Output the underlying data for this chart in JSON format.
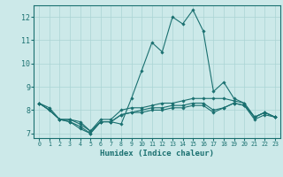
{
  "title": "",
  "xlabel": "Humidex (Indice chaleur)",
  "ylabel": "",
  "background_color": "#cce9e9",
  "grid_color": "#aad4d4",
  "line_color": "#1a7070",
  "xlim": [
    -0.5,
    23.5
  ],
  "ylim": [
    6.8,
    12.5
  ],
  "yticks": [
    7,
    8,
    9,
    10,
    11,
    12
  ],
  "xticks": [
    0,
    1,
    2,
    3,
    4,
    5,
    6,
    7,
    8,
    9,
    10,
    11,
    12,
    13,
    14,
    15,
    16,
    17,
    18,
    19,
    20,
    21,
    22,
    23
  ],
  "series": [
    [
      8.3,
      8.1,
      7.6,
      7.5,
      7.2,
      7.0,
      7.5,
      7.5,
      7.4,
      8.5,
      9.7,
      10.9,
      10.5,
      12.0,
      11.7,
      12.3,
      11.4,
      8.8,
      9.2,
      8.5,
      8.3,
      7.7,
      7.9,
      7.7
    ],
    [
      8.3,
      8.0,
      7.6,
      7.6,
      7.5,
      7.1,
      7.6,
      7.6,
      8.0,
      8.1,
      8.1,
      8.2,
      8.3,
      8.3,
      8.4,
      8.5,
      8.5,
      8.5,
      8.5,
      8.4,
      8.3,
      7.7,
      7.9,
      7.7
    ],
    [
      8.3,
      8.0,
      7.6,
      7.5,
      7.3,
      7.0,
      7.5,
      7.5,
      7.8,
      7.9,
      7.9,
      8.0,
      8.0,
      8.1,
      8.1,
      8.2,
      8.2,
      7.9,
      8.1,
      8.3,
      8.2,
      7.6,
      7.8,
      7.7
    ],
    [
      8.3,
      8.0,
      7.6,
      7.6,
      7.4,
      7.1,
      7.5,
      7.5,
      7.8,
      7.9,
      8.0,
      8.1,
      8.1,
      8.2,
      8.2,
      8.3,
      8.3,
      8.0,
      8.1,
      8.3,
      8.2,
      7.7,
      7.9,
      7.7
    ]
  ]
}
